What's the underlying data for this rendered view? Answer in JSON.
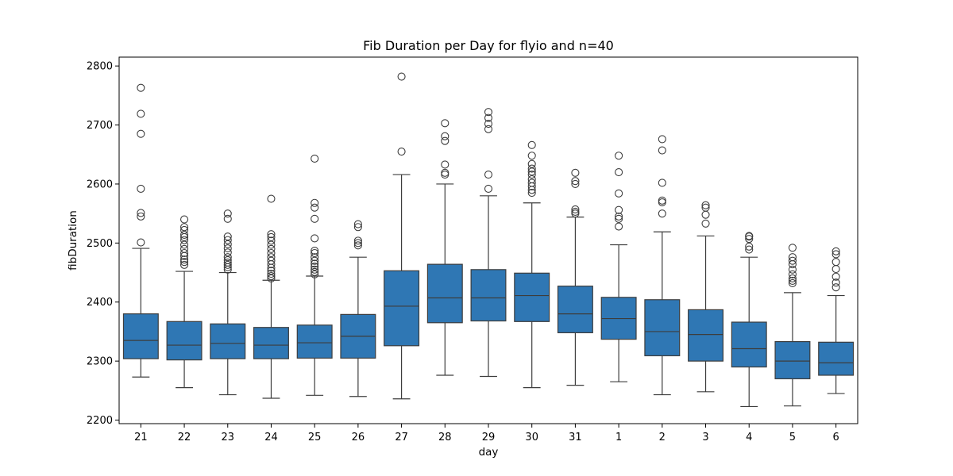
{
  "chart_data": {
    "type": "boxplot",
    "title": "Fib Duration per Day for flyio and n=40",
    "xlabel": "day",
    "ylabel": "fibDuration",
    "ylim": [
      2194,
      2815
    ],
    "yticks": [
      2200,
      2300,
      2400,
      2500,
      2600,
      2700,
      2800
    ],
    "box_color": "#2f77b4",
    "line_color": "#3d3d3d",
    "grid": false,
    "boxes": [
      {
        "label": "21",
        "whisker_low": 2273,
        "q1": 2304,
        "median": 2335,
        "q3": 2380,
        "whisker_high": 2491,
        "outliers": [
          2501,
          2545,
          2551,
          2592,
          2685,
          2719,
          2763
        ]
      },
      {
        "label": "22",
        "whisker_low": 2255,
        "q1": 2302,
        "median": 2327,
        "q3": 2367,
        "whisker_high": 2452,
        "outliers": [
          2463,
          2468,
          2472,
          2478,
          2483,
          2490,
          2497,
          2505,
          2510,
          2514,
          2522,
          2527,
          2540
        ]
      },
      {
        "label": "23",
        "whisker_low": 2243,
        "q1": 2304,
        "median": 2330,
        "q3": 2363,
        "whisker_high": 2450,
        "outliers": [
          2455,
          2459,
          2463,
          2467,
          2471,
          2476,
          2484,
          2491,
          2498,
          2505,
          2511,
          2541,
          2550
        ]
      },
      {
        "label": "24",
        "whisker_low": 2237,
        "q1": 2304,
        "median": 2327,
        "q3": 2357,
        "whisker_high": 2437,
        "outliers": [
          2440,
          2444,
          2448,
          2453,
          2458,
          2464,
          2470,
          2476,
          2483,
          2490,
          2497,
          2504,
          2510,
          2515,
          2575
        ]
      },
      {
        "label": "25",
        "whisker_low": 2242,
        "q1": 2305,
        "median": 2331,
        "q3": 2361,
        "whisker_high": 2444,
        "outliers": [
          2447,
          2451,
          2455,
          2460,
          2465,
          2470,
          2476,
          2483,
          2487,
          2508,
          2541,
          2560,
          2568,
          2643
        ]
      },
      {
        "label": "26",
        "whisker_low": 2240,
        "q1": 2305,
        "median": 2342,
        "q3": 2379,
        "whisker_high": 2476,
        "outliers": [
          2496,
          2500,
          2504,
          2527,
          2532
        ]
      },
      {
        "label": "27",
        "whisker_low": 2236,
        "q1": 2326,
        "median": 2393,
        "q3": 2453,
        "whisker_high": 2616,
        "outliers": [
          2655,
          2782
        ]
      },
      {
        "label": "28",
        "whisker_low": 2276,
        "q1": 2365,
        "median": 2407,
        "q3": 2464,
        "whisker_high": 2600,
        "outliers": [
          2616,
          2619,
          2633,
          2673,
          2681,
          2703
        ]
      },
      {
        "label": "29",
        "whisker_low": 2274,
        "q1": 2368,
        "median": 2407,
        "q3": 2455,
        "whisker_high": 2580,
        "outliers": [
          2592,
          2616,
          2693,
          2702,
          2712,
          2722
        ]
      },
      {
        "label": "30",
        "whisker_low": 2255,
        "q1": 2367,
        "median": 2411,
        "q3": 2449,
        "whisker_high": 2568,
        "outliers": [
          2585,
          2590,
          2596,
          2602,
          2608,
          2616,
          2621,
          2626,
          2634,
          2648,
          2666
        ]
      },
      {
        "label": "31",
        "whisker_low": 2259,
        "q1": 2348,
        "median": 2380,
        "q3": 2427,
        "whisker_high": 2544,
        "outliers": [
          2550,
          2553,
          2557,
          2600,
          2605,
          2619
        ]
      },
      {
        "label": "1",
        "whisker_low": 2265,
        "q1": 2337,
        "median": 2372,
        "q3": 2408,
        "whisker_high": 2497,
        "outliers": [
          2528,
          2541,
          2545,
          2556,
          2584,
          2620,
          2648
        ]
      },
      {
        "label": "2",
        "whisker_low": 2243,
        "q1": 2309,
        "median": 2350,
        "q3": 2404,
        "whisker_high": 2519,
        "outliers": [
          2550,
          2569,
          2572,
          2602,
          2657,
          2676
        ]
      },
      {
        "label": "3",
        "whisker_low": 2248,
        "q1": 2300,
        "median": 2345,
        "q3": 2387,
        "whisker_high": 2512,
        "outliers": [
          2533,
          2548,
          2560,
          2564
        ]
      },
      {
        "label": "4",
        "whisker_low": 2223,
        "q1": 2290,
        "median": 2321,
        "q3": 2366,
        "whisker_high": 2476,
        "outliers": [
          2489,
          2494,
          2507,
          2511,
          2512
        ]
      },
      {
        "label": "5",
        "whisker_low": 2224,
        "q1": 2270,
        "median": 2300,
        "q3": 2333,
        "whisker_high": 2416,
        "outliers": [
          2432,
          2436,
          2440,
          2447,
          2455,
          2464,
          2470,
          2476,
          2492
        ]
      },
      {
        "label": "6",
        "whisker_low": 2245,
        "q1": 2276,
        "median": 2297,
        "q3": 2332,
        "whisker_high": 2411,
        "outliers": [
          2425,
          2433,
          2443,
          2456,
          2468,
          2481,
          2486
        ]
      }
    ]
  }
}
